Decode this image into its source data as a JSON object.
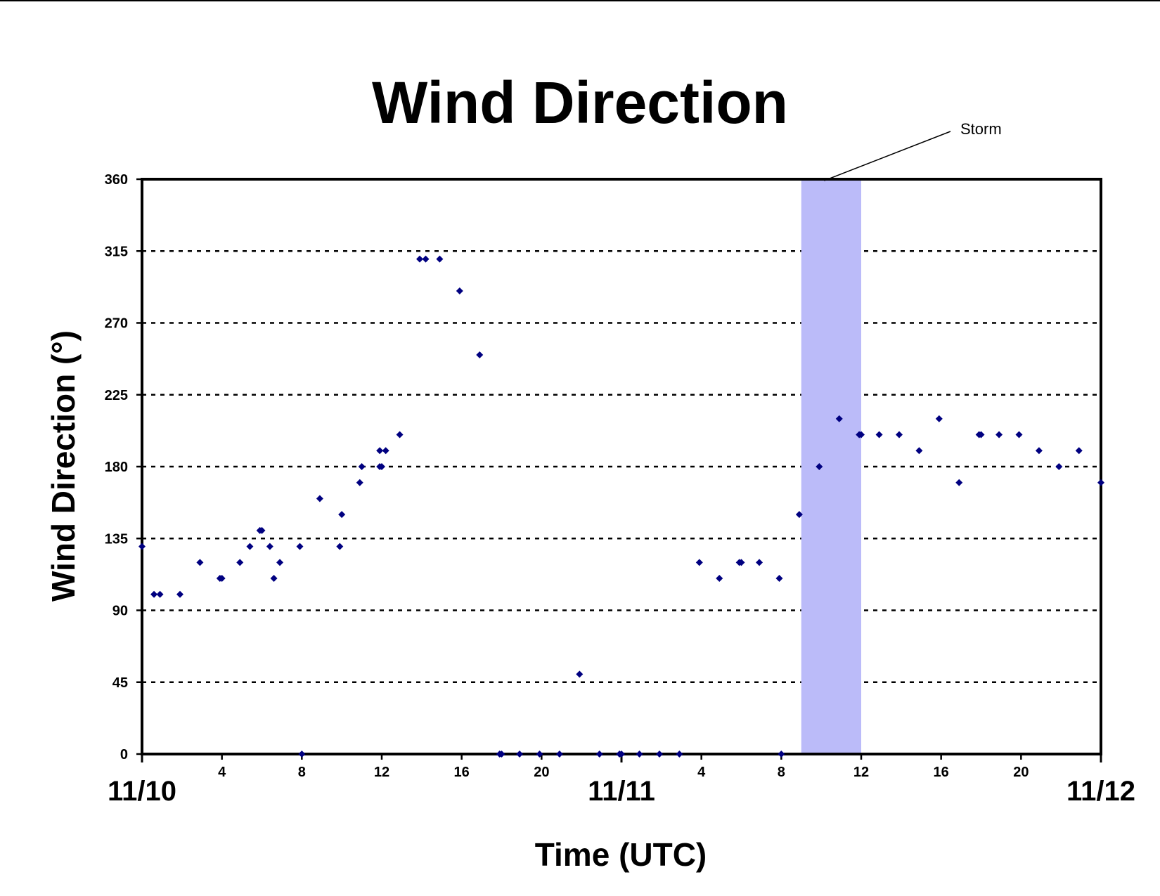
{
  "chart_data": {
    "type": "scatter",
    "title": "Wind Direction",
    "xlabel": "Time (UTC)",
    "ylabel": "Wind Direction (°)",
    "ylim": [
      0,
      360
    ],
    "y_ticks": [
      0,
      45,
      90,
      135,
      180,
      225,
      270,
      315,
      360
    ],
    "xlim_hours": [
      0,
      48
    ],
    "x_hour_ticks": [
      {
        "hour": 4,
        "label": "4"
      },
      {
        "hour": 8,
        "label": "8"
      },
      {
        "hour": 12,
        "label": "12"
      },
      {
        "hour": 16,
        "label": "16"
      },
      {
        "hour": 20,
        "label": "20"
      },
      {
        "hour": 28,
        "label": "4"
      },
      {
        "hour": 32,
        "label": "8"
      },
      {
        "hour": 36,
        "label": "12"
      },
      {
        "hour": 40,
        "label": "16"
      },
      {
        "hour": 44,
        "label": "20"
      }
    ],
    "day_labels": [
      {
        "hour": 0,
        "label": "11/10"
      },
      {
        "hour": 24,
        "label": "11/11"
      },
      {
        "hour": 48,
        "label": "11/12"
      }
    ],
    "grid": "horizontal-dashed",
    "marker_color": "#000080",
    "highlight": {
      "label": "Storm",
      "x_start": 33,
      "x_end": 36,
      "color": "#bbbbf9"
    },
    "points": [
      [
        0.0,
        130
      ],
      [
        0.6,
        100
      ],
      [
        0.9,
        100
      ],
      [
        1.9,
        100
      ],
      [
        2.9,
        120
      ],
      [
        3.9,
        110
      ],
      [
        4.0,
        110
      ],
      [
        4.9,
        120
      ],
      [
        5.4,
        130
      ],
      [
        5.9,
        140
      ],
      [
        6.0,
        140
      ],
      [
        6.4,
        130
      ],
      [
        6.6,
        110
      ],
      [
        6.9,
        120
      ],
      [
        7.9,
        130
      ],
      [
        8.0,
        0
      ],
      [
        8.9,
        160
      ],
      [
        9.9,
        130
      ],
      [
        10.0,
        150
      ],
      [
        10.9,
        170
      ],
      [
        11.0,
        180
      ],
      [
        11.9,
        190
      ],
      [
        11.9,
        180
      ],
      [
        12.0,
        180
      ],
      [
        12.2,
        190
      ],
      [
        12.9,
        200
      ],
      [
        13.9,
        310
      ],
      [
        14.2,
        310
      ],
      [
        14.9,
        310
      ],
      [
        15.9,
        290
      ],
      [
        16.9,
        250
      ],
      [
        17.9,
        0
      ],
      [
        18.0,
        0
      ],
      [
        18.9,
        0
      ],
      [
        19.9,
        0
      ],
      [
        20.9,
        0
      ],
      [
        21.9,
        50
      ],
      [
        22.9,
        0
      ],
      [
        23.9,
        0
      ],
      [
        24.0,
        0
      ],
      [
        24.9,
        0
      ],
      [
        25.9,
        0
      ],
      [
        26.9,
        0
      ],
      [
        27.9,
        120
      ],
      [
        28.9,
        110
      ],
      [
        29.9,
        120
      ],
      [
        30.0,
        120
      ],
      [
        30.9,
        120
      ],
      [
        31.9,
        110
      ],
      [
        32.0,
        0
      ],
      [
        32.9,
        150
      ],
      [
        33.9,
        180
      ],
      [
        34.9,
        210
      ],
      [
        35.9,
        200
      ],
      [
        36.0,
        200
      ],
      [
        36.9,
        200
      ],
      [
        37.9,
        200
      ],
      [
        38.9,
        190
      ],
      [
        39.9,
        210
      ],
      [
        40.9,
        170
      ],
      [
        41.9,
        200
      ],
      [
        42.0,
        200
      ],
      [
        42.9,
        200
      ],
      [
        43.9,
        200
      ],
      [
        44.9,
        190
      ],
      [
        45.9,
        180
      ],
      [
        46.9,
        190
      ],
      [
        48.0,
        170
      ]
    ]
  }
}
